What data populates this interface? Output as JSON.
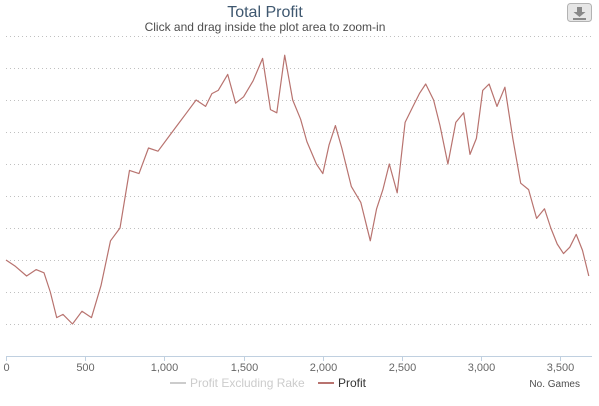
{
  "chart_data": {
    "type": "line",
    "title": "Total Profit",
    "subtitle": "Click and drag inside the plot area to zoom-in",
    "xlabel": "No. Games",
    "ylabel": "",
    "x_ticks": [
      "0",
      "500",
      "1,000",
      "1,500",
      "2,000",
      "2,500",
      "3,000",
      "3,500"
    ],
    "x_tick_values": [
      0,
      500,
      1000,
      1500,
      2000,
      2500,
      3000,
      3500
    ],
    "xlim": [
      0,
      3700
    ],
    "ylim": [
      -3,
      7
    ],
    "grid": true,
    "legend_position": "bottom",
    "series": [
      {
        "name": "Profit Excluding Rake",
        "color": "#d9d9d9",
        "visible": false,
        "x": [],
        "y": []
      },
      {
        "name": "Profit",
        "color": "#b8736f",
        "visible": true,
        "x": [
          0,
          60,
          130,
          190,
          240,
          280,
          320,
          360,
          420,
          480,
          540,
          600,
          660,
          720,
          780,
          840,
          900,
          960,
          1020,
          1080,
          1140,
          1200,
          1260,
          1300,
          1340,
          1400,
          1450,
          1500,
          1560,
          1620,
          1670,
          1710,
          1760,
          1810,
          1860,
          1900,
          1960,
          2000,
          2040,
          2080,
          2120,
          2180,
          2240,
          2300,
          2340,
          2380,
          2420,
          2470,
          2520,
          2570,
          2610,
          2650,
          2700,
          2740,
          2790,
          2840,
          2890,
          2930,
          2970,
          3010,
          3050,
          3100,
          3150,
          3200,
          3250,
          3300,
          3350,
          3400,
          3440,
          3480,
          3520,
          3560,
          3600,
          3640,
          3680
        ],
        "y": [
          0.0,
          -0.2,
          -0.5,
          -0.3,
          -0.4,
          -1.0,
          -1.8,
          -1.7,
          -2.0,
          -1.6,
          -1.8,
          -0.8,
          0.6,
          1.0,
          2.8,
          2.7,
          3.5,
          3.4,
          3.8,
          4.2,
          4.6,
          5.0,
          4.8,
          5.2,
          5.3,
          5.8,
          4.9,
          5.1,
          5.6,
          6.3,
          4.7,
          4.6,
          6.4,
          5.0,
          4.4,
          3.7,
          3.0,
          2.7,
          3.6,
          4.2,
          3.5,
          2.3,
          1.8,
          0.6,
          1.6,
          2.2,
          3.0,
          2.1,
          4.3,
          4.8,
          5.2,
          5.5,
          5.0,
          4.2,
          3.0,
          4.3,
          4.6,
          3.3,
          3.8,
          5.3,
          5.5,
          4.8,
          5.4,
          3.8,
          2.4,
          2.2,
          1.3,
          1.6,
          1.0,
          0.5,
          0.2,
          0.4,
          0.8,
          0.3,
          -0.5
        ]
      }
    ]
  },
  "export_button": {
    "icon": "download-icon"
  }
}
